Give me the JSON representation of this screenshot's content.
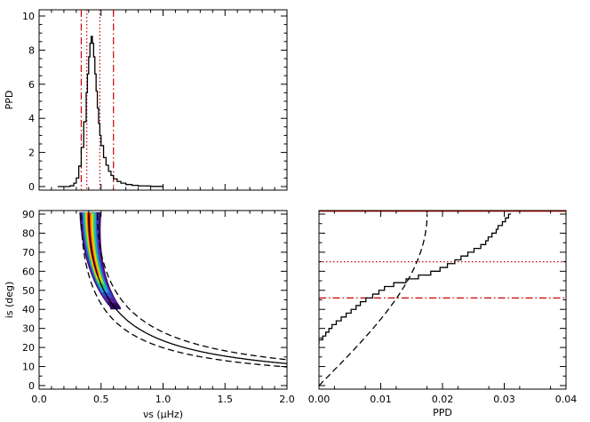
{
  "chart_data": [
    {
      "id": "panel-top",
      "type": "line",
      "ylabel": "PPD",
      "xlabel": "",
      "xlim": [
        0,
        2
      ],
      "ylim": [
        0,
        10
      ],
      "yticks": [
        0,
        2,
        4,
        6,
        8,
        10
      ],
      "ytick_labels": [
        "0",
        "2",
        "4",
        "6",
        "8",
        "10"
      ],
      "series": [
        {
          "style": "histogram",
          "color": "#000000",
          "x": [
            0.15,
            0.2,
            0.25,
            0.28,
            0.3,
            0.32,
            0.34,
            0.36,
            0.38,
            0.39,
            0.4,
            0.41,
            0.42,
            0.43,
            0.44,
            0.45,
            0.46,
            0.47,
            0.48,
            0.49,
            0.5,
            0.52,
            0.54,
            0.56,
            0.58,
            0.6,
            0.63,
            0.66,
            0.7,
            0.75,
            0.8,
            0.9,
            1.0
          ],
          "y": [
            0,
            0,
            0.05,
            0.2,
            0.5,
            1.2,
            2.3,
            3.8,
            5.5,
            6.6,
            7.6,
            8.4,
            8.8,
            8.4,
            7.6,
            6.6,
            5.6,
            4.6,
            3.7,
            3.0,
            2.4,
            1.7,
            1.25,
            0.9,
            0.65,
            0.45,
            0.3,
            0.2,
            0.12,
            0.07,
            0.04,
            0.01,
            0
          ]
        }
      ],
      "vlines": [
        {
          "x": 0.34,
          "style": "dashdot",
          "color": "#cc0000"
        },
        {
          "x": 0.385,
          "style": "dotted",
          "color": "#cc0000"
        },
        {
          "x": 0.49,
          "style": "dotted",
          "color": "#cc0000"
        },
        {
          "x": 0.6,
          "style": "dashdot",
          "color": "#cc0000"
        }
      ]
    },
    {
      "id": "panel-bottom-left",
      "type": "heatmap",
      "xlabel": "νs (μHz)",
      "ylabel": "is (deg)",
      "xlim": [
        0,
        2
      ],
      "ylim": [
        0,
        90
      ],
      "xticks": [
        0,
        0.5,
        1,
        1.5,
        2
      ],
      "xtick_labels": [
        "0.0",
        "0.5",
        "1.0",
        "1.5",
        "2.0"
      ],
      "yticks": [
        0,
        10,
        20,
        30,
        40,
        50,
        60,
        70,
        80,
        90
      ],
      "ytick_labels": [
        "0",
        "10",
        "20",
        "30",
        "40",
        "50",
        "60",
        "70",
        "80",
        "90"
      ],
      "colormap": [
        "#2c0a5e",
        "#5a20a0",
        "#3050d0",
        "#20a0e0",
        "#20c080",
        "#a0e020",
        "#ffd000",
        "#ff6000",
        "#e00000"
      ],
      "curves": [
        {
          "style": "solid",
          "color": "#000000",
          "x0": 0.4,
          "x_end": 2.0
        },
        {
          "style": "dashed",
          "color": "#000000",
          "x0": 0.47,
          "x_end": 2.0
        },
        {
          "style": "dashed",
          "color": "#000000",
          "x0": 0.34,
          "x_end": 2.0
        }
      ]
    },
    {
      "id": "panel-bottom-right",
      "type": "line",
      "xlabel": "PPD",
      "ylabel": "",
      "xlim": [
        0,
        0.04
      ],
      "ylim": [
        0,
        90
      ],
      "xticks": [
        0,
        0.01,
        0.02,
        0.03,
        0.04
      ],
      "xtick_labels": [
        "0.00",
        "0.01",
        "0.02",
        "0.03",
        "0.04"
      ],
      "series": [
        {
          "style": "histogram",
          "color": "#000000",
          "y": [
            22,
            24,
            26,
            28,
            30,
            32,
            34,
            36,
            38,
            40,
            42,
            44,
            46,
            48,
            50,
            52,
            54,
            56,
            58,
            60,
            62,
            64,
            66,
            68,
            70,
            72,
            74,
            76,
            78,
            80,
            82,
            84,
            86,
            88,
            90
          ],
          "x": [
            0,
            0.0006,
            0.0011,
            0.0016,
            0.0021,
            0.0028,
            0.0036,
            0.0044,
            0.0052,
            0.006,
            0.0067,
            0.0076,
            0.0087,
            0.0097,
            0.0106,
            0.0121,
            0.0141,
            0.0161,
            0.0181,
            0.0196,
            0.0208,
            0.022,
            0.023,
            0.0241,
            0.0251,
            0.0262,
            0.027,
            0.0274,
            0.028,
            0.0287,
            0.029,
            0.0297,
            0.0302,
            0.0307,
            0.0311
          ]
        },
        {
          "style": "dashed",
          "color": "#000000",
          "note": "sin(i) prior",
          "amplitude": 0.0175
        }
      ],
      "hlines": [
        {
          "y": 46,
          "style": "dashdot",
          "color": "#cc0000"
        },
        {
          "y": 65,
          "style": "dotted",
          "color": "#cc0000"
        },
        {
          "y": 91.5,
          "style": "solid",
          "color": "#cc0000"
        }
      ]
    }
  ]
}
